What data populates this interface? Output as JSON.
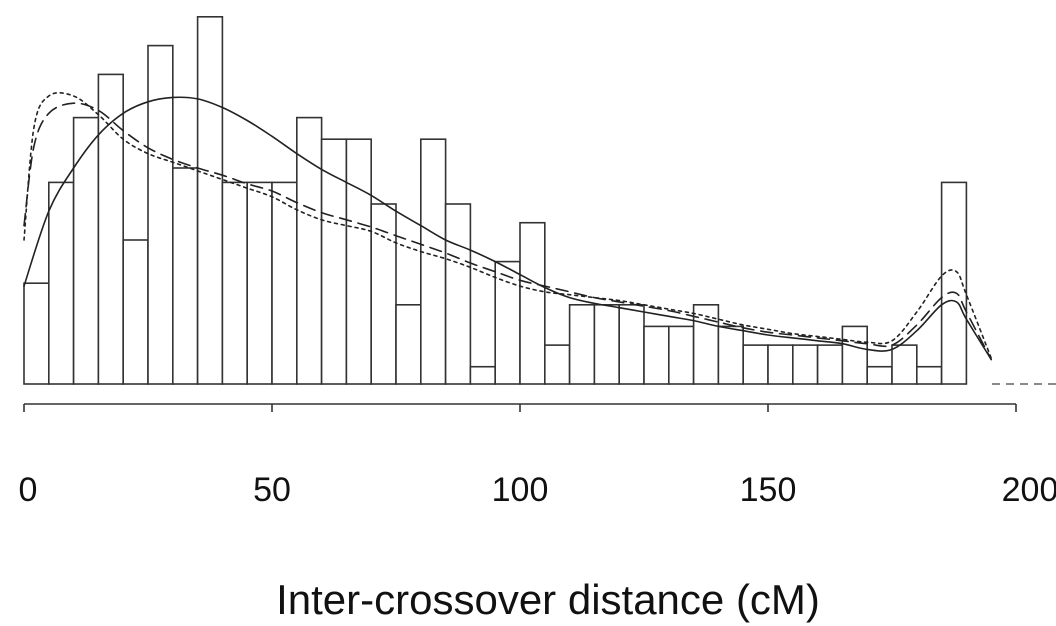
{
  "chart_data": {
    "type": "bar",
    "xlabel": "Inter-crossover distance (cM)",
    "ylabel": "",
    "title": "",
    "xlim": [
      0,
      200
    ],
    "x_ticks": [
      0,
      50,
      100,
      150,
      200
    ],
    "x_tick_labels": [
      "0",
      "50",
      "100",
      "150",
      "200"
    ],
    "grid": false,
    "bin_width": 5,
    "bins_start": [
      0,
      5,
      10,
      15,
      20,
      25,
      30,
      35,
      40,
      45,
      50,
      55,
      60,
      65,
      70,
      75,
      80,
      85,
      90,
      95,
      100,
      105,
      110,
      115,
      120,
      125,
      130,
      135,
      140,
      145,
      150,
      155,
      160,
      165,
      170,
      175,
      180,
      185
    ],
    "bar_heights": [
      0.7,
      1.4,
      1.85,
      2.15,
      1.0,
      2.35,
      1.5,
      2.55,
      1.4,
      1.4,
      1.4,
      1.85,
      1.7,
      1.7,
      1.25,
      0.55,
      1.7,
      1.25,
      0.12,
      0.85,
      1.12,
      0.27,
      0.55,
      0.55,
      0.55,
      0.4,
      0.4,
      0.55,
      0.4,
      0.27,
      0.27,
      0.27,
      0.27,
      0.4,
      0.12,
      0.27,
      0.12,
      1.4
    ],
    "lines": [
      {
        "style": "solid",
        "x": [
          0,
          5,
          10,
          15,
          20,
          25,
          30,
          35,
          40,
          45,
          50,
          55,
          60,
          65,
          70,
          75,
          80,
          85,
          90,
          95,
          100,
          105,
          110,
          115,
          120,
          125,
          130,
          135,
          140,
          145,
          150,
          155,
          160,
          165,
          170,
          175,
          180,
          185,
          188,
          190,
          195
        ],
        "y": [
          0.68,
          1.2,
          1.5,
          1.73,
          1.88,
          1.96,
          1.99,
          1.98,
          1.92,
          1.83,
          1.72,
          1.6,
          1.49,
          1.4,
          1.31,
          1.2,
          1.1,
          1.0,
          0.93,
          0.85,
          0.76,
          0.67,
          0.6,
          0.56,
          0.53,
          0.5,
          0.47,
          0.44,
          0.4,
          0.37,
          0.34,
          0.32,
          0.3,
          0.28,
          0.24,
          0.24,
          0.37,
          0.55,
          0.57,
          0.45,
          0.17
        ]
      },
      {
        "style": "dashed",
        "x": [
          0,
          2,
          5,
          10,
          15,
          20,
          25,
          30,
          35,
          40,
          45,
          50,
          55,
          60,
          65,
          70,
          75,
          80,
          85,
          90,
          95,
          100,
          105,
          110,
          115,
          120,
          125,
          130,
          135,
          140,
          145,
          150,
          155,
          160,
          165,
          170,
          175,
          180,
          185,
          188,
          190,
          195
        ],
        "y": [
          1.1,
          1.65,
          1.88,
          1.95,
          1.9,
          1.76,
          1.64,
          1.56,
          1.5,
          1.45,
          1.39,
          1.34,
          1.26,
          1.19,
          1.14,
          1.09,
          1.03,
          0.97,
          0.91,
          0.84,
          0.78,
          0.72,
          0.68,
          0.64,
          0.6,
          0.57,
          0.54,
          0.51,
          0.47,
          0.43,
          0.39,
          0.36,
          0.34,
          0.32,
          0.3,
          0.28,
          0.27,
          0.41,
          0.6,
          0.63,
          0.5,
          0.17
        ]
      },
      {
        "style": "dotted",
        "x": [
          0,
          2,
          5,
          10,
          15,
          20,
          25,
          30,
          35,
          40,
          45,
          50,
          55,
          60,
          65,
          70,
          75,
          80,
          85,
          90,
          95,
          100,
          105,
          110,
          115,
          120,
          125,
          130,
          135,
          140,
          145,
          150,
          155,
          160,
          165,
          170,
          175,
          180,
          185,
          188,
          190,
          195
        ],
        "y": [
          1.0,
          1.78,
          2.0,
          2.0,
          1.87,
          1.7,
          1.6,
          1.54,
          1.48,
          1.42,
          1.36,
          1.3,
          1.21,
          1.14,
          1.1,
          1.06,
          0.98,
          0.92,
          0.87,
          0.81,
          0.74,
          0.68,
          0.64,
          0.62,
          0.6,
          0.58,
          0.55,
          0.52,
          0.49,
          0.45,
          0.41,
          0.38,
          0.35,
          0.33,
          0.31,
          0.29,
          0.3,
          0.5,
          0.75,
          0.78,
          0.62,
          0.18
        ]
      }
    ]
  }
}
